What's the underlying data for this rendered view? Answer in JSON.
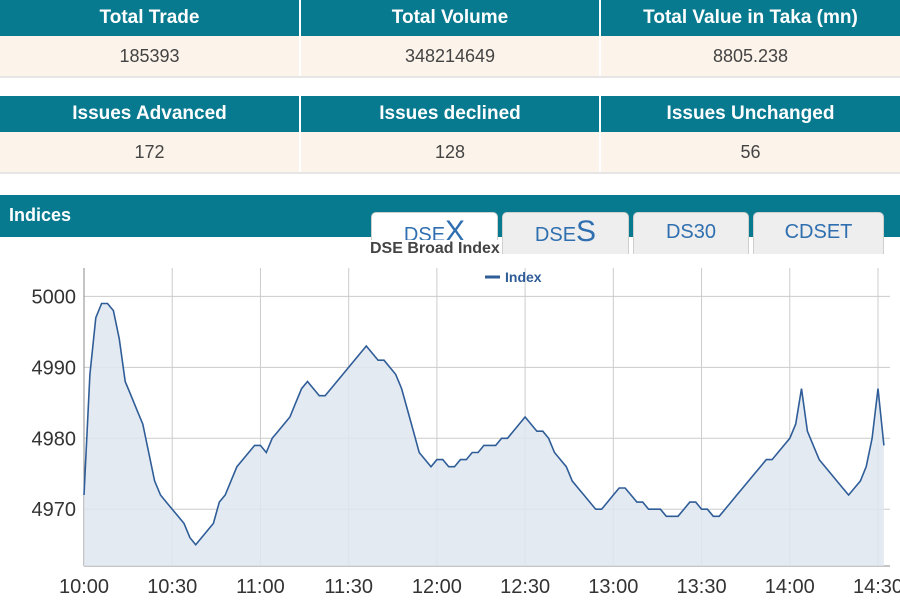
{
  "trade_stats": {
    "headers": [
      "Total Trade",
      "Total Volume",
      "Total Value in Taka (mn)"
    ],
    "values": [
      "185393",
      "348214649",
      "8805.238"
    ]
  },
  "issues_stats": {
    "headers": [
      "Issues Advanced",
      "Issues declined",
      "Issues Unchanged"
    ],
    "values": [
      "172",
      "128",
      "56"
    ]
  },
  "indices": {
    "title": "Indices",
    "tabs": [
      {
        "prefix": "DSE",
        "suffix": "X",
        "active": true
      },
      {
        "prefix": "DSE",
        "suffix": "S",
        "active": false
      },
      {
        "prefix": "DS30",
        "suffix": "",
        "active": false
      },
      {
        "prefix": "CDSET",
        "suffix": "",
        "active": false
      }
    ]
  },
  "colors": {
    "header_bg": "#087a90",
    "row_bg": "#fcf3ea",
    "series_line": "#2f5d98",
    "series_fill": "#dfe6ee"
  },
  "chart_data": {
    "type": "area",
    "title": "DSE Broad Index",
    "legend": {
      "label": "Index",
      "placement": "top-center"
    },
    "x_ticks": [
      "10:00",
      "10:30",
      "11:00",
      "11:30",
      "12:00",
      "12:30",
      "13:00",
      "13:30",
      "14:00",
      "14:30"
    ],
    "y_ticks": [
      4970,
      4980,
      4990,
      5000
    ],
    "ylim": [
      4962,
      5004
    ],
    "grid": true,
    "series": [
      {
        "name": "Index",
        "x": [
          "10:00",
          "10:02",
          "10:04",
          "10:06",
          "10:08",
          "10:10",
          "10:12",
          "10:14",
          "10:16",
          "10:18",
          "10:20",
          "10:22",
          "10:24",
          "10:26",
          "10:28",
          "10:30",
          "10:32",
          "10:34",
          "10:36",
          "10:38",
          "10:40",
          "10:42",
          "10:44",
          "10:46",
          "10:48",
          "10:50",
          "10:52",
          "10:54",
          "10:56",
          "10:58",
          "11:00",
          "11:02",
          "11:04",
          "11:06",
          "11:08",
          "11:10",
          "11:12",
          "11:14",
          "11:16",
          "11:18",
          "11:20",
          "11:22",
          "11:24",
          "11:26",
          "11:28",
          "11:30",
          "11:32",
          "11:34",
          "11:36",
          "11:38",
          "11:40",
          "11:42",
          "11:44",
          "11:46",
          "11:48",
          "11:50",
          "11:52",
          "11:54",
          "11:56",
          "11:58",
          "12:00",
          "12:02",
          "12:04",
          "12:06",
          "12:08",
          "12:10",
          "12:12",
          "12:14",
          "12:16",
          "12:18",
          "12:20",
          "12:22",
          "12:24",
          "12:26",
          "12:28",
          "12:30",
          "12:32",
          "12:34",
          "12:36",
          "12:38",
          "12:40",
          "12:42",
          "12:44",
          "12:46",
          "12:48",
          "12:50",
          "12:52",
          "12:54",
          "12:56",
          "12:58",
          "13:00",
          "13:02",
          "13:04",
          "13:06",
          "13:08",
          "13:10",
          "13:12",
          "13:14",
          "13:16",
          "13:18",
          "13:20",
          "13:22",
          "13:24",
          "13:26",
          "13:28",
          "13:30",
          "13:32",
          "13:34",
          "13:36",
          "13:38",
          "13:40",
          "13:42",
          "13:44",
          "13:46",
          "13:48",
          "13:50",
          "13:52",
          "13:54",
          "13:56",
          "13:58",
          "14:00",
          "14:02",
          "14:04",
          "14:06",
          "14:08",
          "14:10",
          "14:12",
          "14:14",
          "14:16",
          "14:18",
          "14:20",
          "14:22",
          "14:24",
          "14:26",
          "14:28",
          "14:30",
          "14:32"
        ],
        "values": [
          4972,
          4989,
          4997,
          4999,
          4999,
          4998,
          4994,
          4988,
          4986,
          4984,
          4982,
          4978,
          4974,
          4972,
          4971,
          4970,
          4969,
          4968,
          4966,
          4965,
          4966,
          4967,
          4968,
          4971,
          4972,
          4974,
          4976,
          4977,
          4978,
          4979,
          4979,
          4978,
          4980,
          4981,
          4982,
          4983,
          4985,
          4987,
          4988,
          4987,
          4986,
          4986,
          4987,
          4988,
          4989,
          4990,
          4991,
          4992,
          4993,
          4992,
          4991,
          4991,
          4990,
          4989,
          4987,
          4984,
          4981,
          4978,
          4977,
          4976,
          4977,
          4977,
          4976,
          4976,
          4977,
          4977,
          4978,
          4978,
          4979,
          4979,
          4979,
          4980,
          4980,
          4981,
          4982,
          4983,
          4982,
          4981,
          4981,
          4980,
          4978,
          4977,
          4976,
          4974,
          4973,
          4972,
          4971,
          4970,
          4970,
          4971,
          4972,
          4973,
          4973,
          4972,
          4971,
          4971,
          4970,
          4970,
          4970,
          4969,
          4969,
          4969,
          4970,
          4971,
          4971,
          4970,
          4970,
          4969,
          4969,
          4970,
          4971,
          4972,
          4973,
          4974,
          4975,
          4976,
          4977,
          4977,
          4978,
          4979,
          4980,
          4982,
          4987,
          4981,
          4979,
          4977,
          4976,
          4975,
          4974,
          4973,
          4972,
          4973,
          4974,
          4976,
          4980,
          4987,
          4979
        ]
      }
    ]
  }
}
